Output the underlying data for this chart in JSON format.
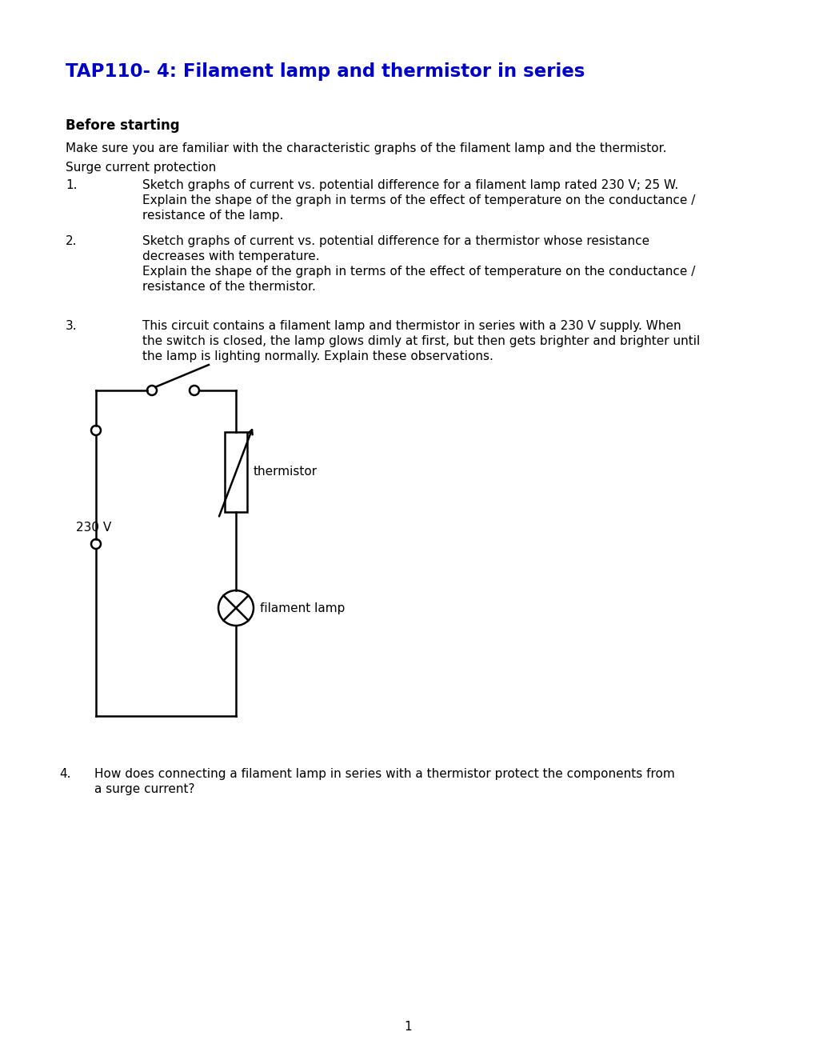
{
  "title": "TAP110- 4: Filament lamp and thermistor in series",
  "title_color": "#0000CC",
  "background_color": "#ffffff",
  "section_heading": "Before starting",
  "para1": "Make sure you are familiar with the characteristic graphs of the filament lamp and the thermistor.",
  "para2": "Surge current protection",
  "item1_num": "1.",
  "item1_line1": "Sketch graphs of current vs. potential difference for a filament lamp rated 230 V; 25 W.",
  "item1_line2": "Explain the shape of the graph in terms of the effect of temperature on the conductance /",
  "item1_line3": "resistance of the lamp.",
  "item2_num": "2.",
  "item2_line1": "Sketch graphs of current vs. potential difference for a thermistor whose resistance",
  "item2_line2": "decreases with temperature.",
  "item2_line3": "Explain the shape of the graph in terms of the effect of temperature on the conductance /",
  "item2_line4": "resistance of the thermistor.",
  "item3_num": "3.",
  "item3_line1": "This circuit contains a filament lamp and thermistor in series with a 230 V supply. When",
  "item3_line2": "the switch is closed, the lamp glows dimly at first, but then gets brighter and brighter until",
  "item3_line3": "the lamp is lighting normally. Explain these observations.",
  "item4_num": "4.",
  "item4_line1": "How does connecting a filament lamp in series with a thermistor protect the components from",
  "item4_line2": "a surge current?",
  "voltage_label": "230 V",
  "thermistor_label": "thermistor",
  "lamp_label": "filament lamp",
  "page_number": "1"
}
